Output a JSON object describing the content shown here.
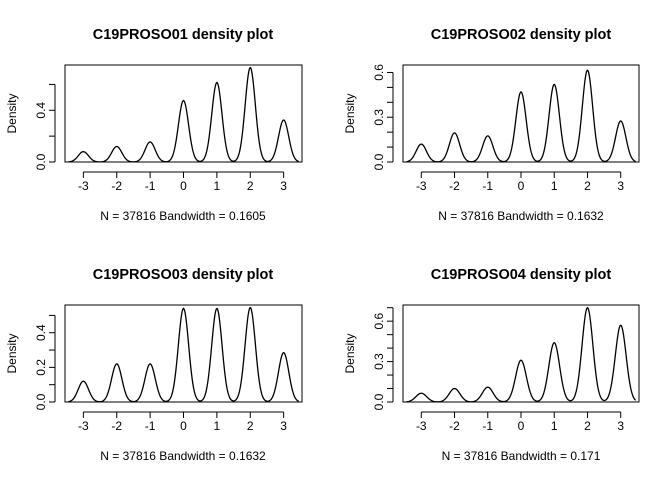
{
  "chart_data": [
    {
      "type": "line",
      "title": "C19PROSO01 density plot",
      "xlabel": "N = 37816   Bandwidth = 0.1605",
      "ylabel": "Density",
      "xlim": [
        -3.55,
        3.55
      ],
      "ylim": [
        0,
        0.75
      ],
      "xticks": [
        -3,
        -2,
        -1,
        0,
        1,
        2,
        3
      ],
      "yticks": [
        0.0,
        0.2,
        0.4,
        0.6
      ],
      "ytick_labels": [
        "0.0",
        "",
        "0.4",
        ""
      ],
      "series": [
        {
          "peaks": [
            {
              "x": -3,
              "y": 0.08
            },
            {
              "x": -2,
              "y": 0.12
            },
            {
              "x": -1,
              "y": 0.155
            },
            {
              "x": 0,
              "y": 0.475
            },
            {
              "x": 1,
              "y": 0.615
            },
            {
              "x": 2,
              "y": 0.73
            },
            {
              "x": 3,
              "y": 0.325
            }
          ],
          "bandwidth": 0.1605
        }
      ]
    },
    {
      "type": "line",
      "title": "C19PROSO02 density plot",
      "xlabel": "N = 37816   Bandwidth = 0.1632",
      "ylabel": "Density",
      "xlim": [
        -3.55,
        3.55
      ],
      "ylim": [
        0,
        0.65
      ],
      "xticks": [
        -3,
        -2,
        -1,
        0,
        1,
        2,
        3
      ],
      "yticks": [
        0.0,
        0.1,
        0.2,
        0.3,
        0.4,
        0.5,
        0.6
      ],
      "ytick_labels": [
        "0.0",
        "",
        "",
        "0.3",
        "",
        "",
        "0.6"
      ],
      "series": [
        {
          "peaks": [
            {
              "x": -3,
              "y": 0.12
            },
            {
              "x": -2,
              "y": 0.195
            },
            {
              "x": -1,
              "y": 0.175
            },
            {
              "x": 0,
              "y": 0.47
            },
            {
              "x": 1,
              "y": 0.52
            },
            {
              "x": 2,
              "y": 0.615
            },
            {
              "x": 3,
              "y": 0.275
            }
          ],
          "bandwidth": 0.1632
        }
      ]
    },
    {
      "type": "line",
      "title": "C19PROSO03 density plot",
      "xlabel": "N = 37816   Bandwidth = 0.1632",
      "ylabel": "Density",
      "xlim": [
        -3.55,
        3.55
      ],
      "ylim": [
        0,
        0.56
      ],
      "xticks": [
        -3,
        -2,
        -1,
        0,
        1,
        2,
        3
      ],
      "yticks": [
        0.0,
        0.1,
        0.2,
        0.3,
        0.4,
        0.5
      ],
      "ytick_labels": [
        "0.0",
        "",
        "0.2",
        "",
        "0.4",
        ""
      ],
      "series": [
        {
          "peaks": [
            {
              "x": -3,
              "y": 0.12
            },
            {
              "x": -2,
              "y": 0.22
            },
            {
              "x": -1,
              "y": 0.22
            },
            {
              "x": 0,
              "y": 0.54
            },
            {
              "x": 1,
              "y": 0.54
            },
            {
              "x": 2,
              "y": 0.545
            },
            {
              "x": 3,
              "y": 0.285
            }
          ],
          "bandwidth": 0.1632
        }
      ]
    },
    {
      "type": "line",
      "title": "C19PROSO04 density plot",
      "xlabel": "N = 37816   Bandwidth = 0.171",
      "ylabel": "Density",
      "xlim": [
        -3.55,
        3.55
      ],
      "ylim": [
        0,
        0.72
      ],
      "xticks": [
        -3,
        -2,
        -1,
        0,
        1,
        2,
        3
      ],
      "yticks": [
        0.0,
        0.1,
        0.2,
        0.3,
        0.4,
        0.5,
        0.6,
        0.7
      ],
      "ytick_labels": [
        "0.0",
        "",
        "",
        "0.3",
        "",
        "",
        "0.6",
        ""
      ],
      "series": [
        {
          "peaks": [
            {
              "x": -3,
              "y": 0.065
            },
            {
              "x": -2,
              "y": 0.1
            },
            {
              "x": -1,
              "y": 0.11
            },
            {
              "x": 0,
              "y": 0.31
            },
            {
              "x": 1,
              "y": 0.44
            },
            {
              "x": 2,
              "y": 0.7
            },
            {
              "x": 3,
              "y": 0.57
            }
          ],
          "bandwidth": 0.171
        }
      ]
    }
  ]
}
